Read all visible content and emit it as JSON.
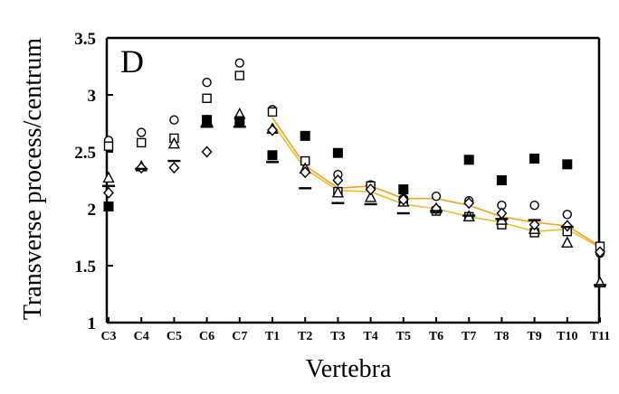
{
  "chart_data": {
    "type": "scatter",
    "panel_label": "D",
    "xlabel": "Vertebra",
    "ylabel": "Transverse process/centrum",
    "ylim": [
      1,
      3.5
    ],
    "y_ticks": [
      "1",
      "1.5",
      "2",
      "2.5",
      "3",
      "3.5"
    ],
    "categories": [
      "C3",
      "C4",
      "C5",
      "C6",
      "C7",
      "T1",
      "T2",
      "T3",
      "T4",
      "T5",
      "T6",
      "T7",
      "T8",
      "T9",
      "T10",
      "T11"
    ],
    "grid": false,
    "series": [
      {
        "marker": "circle",
        "values": [
          2.6,
          2.67,
          2.78,
          3.11,
          3.28,
          2.87,
          2.42,
          2.3,
          2.21,
          2.09,
          2.11,
          2.07,
          2.03,
          2.03,
          1.95,
          1.61
        ]
      },
      {
        "marker": "square",
        "values": [
          2.55,
          2.58,
          2.62,
          2.97,
          3.17,
          2.85,
          2.42,
          2.15,
          2.2,
          2.07,
          1.98,
          1.93,
          1.86,
          1.79,
          1.8,
          1.67
        ]
      },
      {
        "marker": "triangle",
        "values": [
          2.27,
          2.37,
          2.57,
          2.77,
          2.83,
          2.7,
          2.35,
          2.14,
          2.1,
          2.06,
          2.0,
          1.93,
          1.9,
          1.82,
          1.7,
          1.35
        ]
      },
      {
        "marker": "diamond",
        "values": [
          2.14,
          2.36,
          2.36,
          2.5,
          null,
          2.69,
          2.32,
          2.25,
          2.17,
          2.08,
          2.0,
          2.05,
          1.96,
          1.86,
          1.85,
          1.62
        ]
      },
      {
        "marker": "filled-square",
        "values": [
          2.02,
          null,
          null,
          2.78,
          2.77,
          2.47,
          2.64,
          2.49,
          null,
          2.17,
          null,
          2.43,
          2.25,
          2.44,
          2.39,
          null
        ]
      },
      {
        "marker": "dash",
        "values": [
          2.2,
          2.35,
          2.42,
          2.72,
          2.72,
          2.41,
          2.18,
          2.05,
          2.04,
          1.96,
          1.98,
          1.94,
          1.91,
          1.9,
          1.84,
          1.33
        ]
      },
      {
        "marker": "line",
        "color": "#f2a21e",
        "values": [
          null,
          null,
          null,
          null,
          null,
          2.8,
          2.38,
          2.18,
          2.2,
          2.09,
          2.09,
          2.03,
          1.93,
          1.88,
          1.85,
          1.67
        ]
      },
      {
        "marker": "line",
        "color": "#e8c02a",
        "values": [
          null,
          null,
          null,
          null,
          null,
          2.75,
          2.35,
          2.16,
          2.15,
          2.04,
          2.0,
          1.93,
          1.88,
          1.8,
          1.82,
          1.66
        ]
      }
    ]
  }
}
